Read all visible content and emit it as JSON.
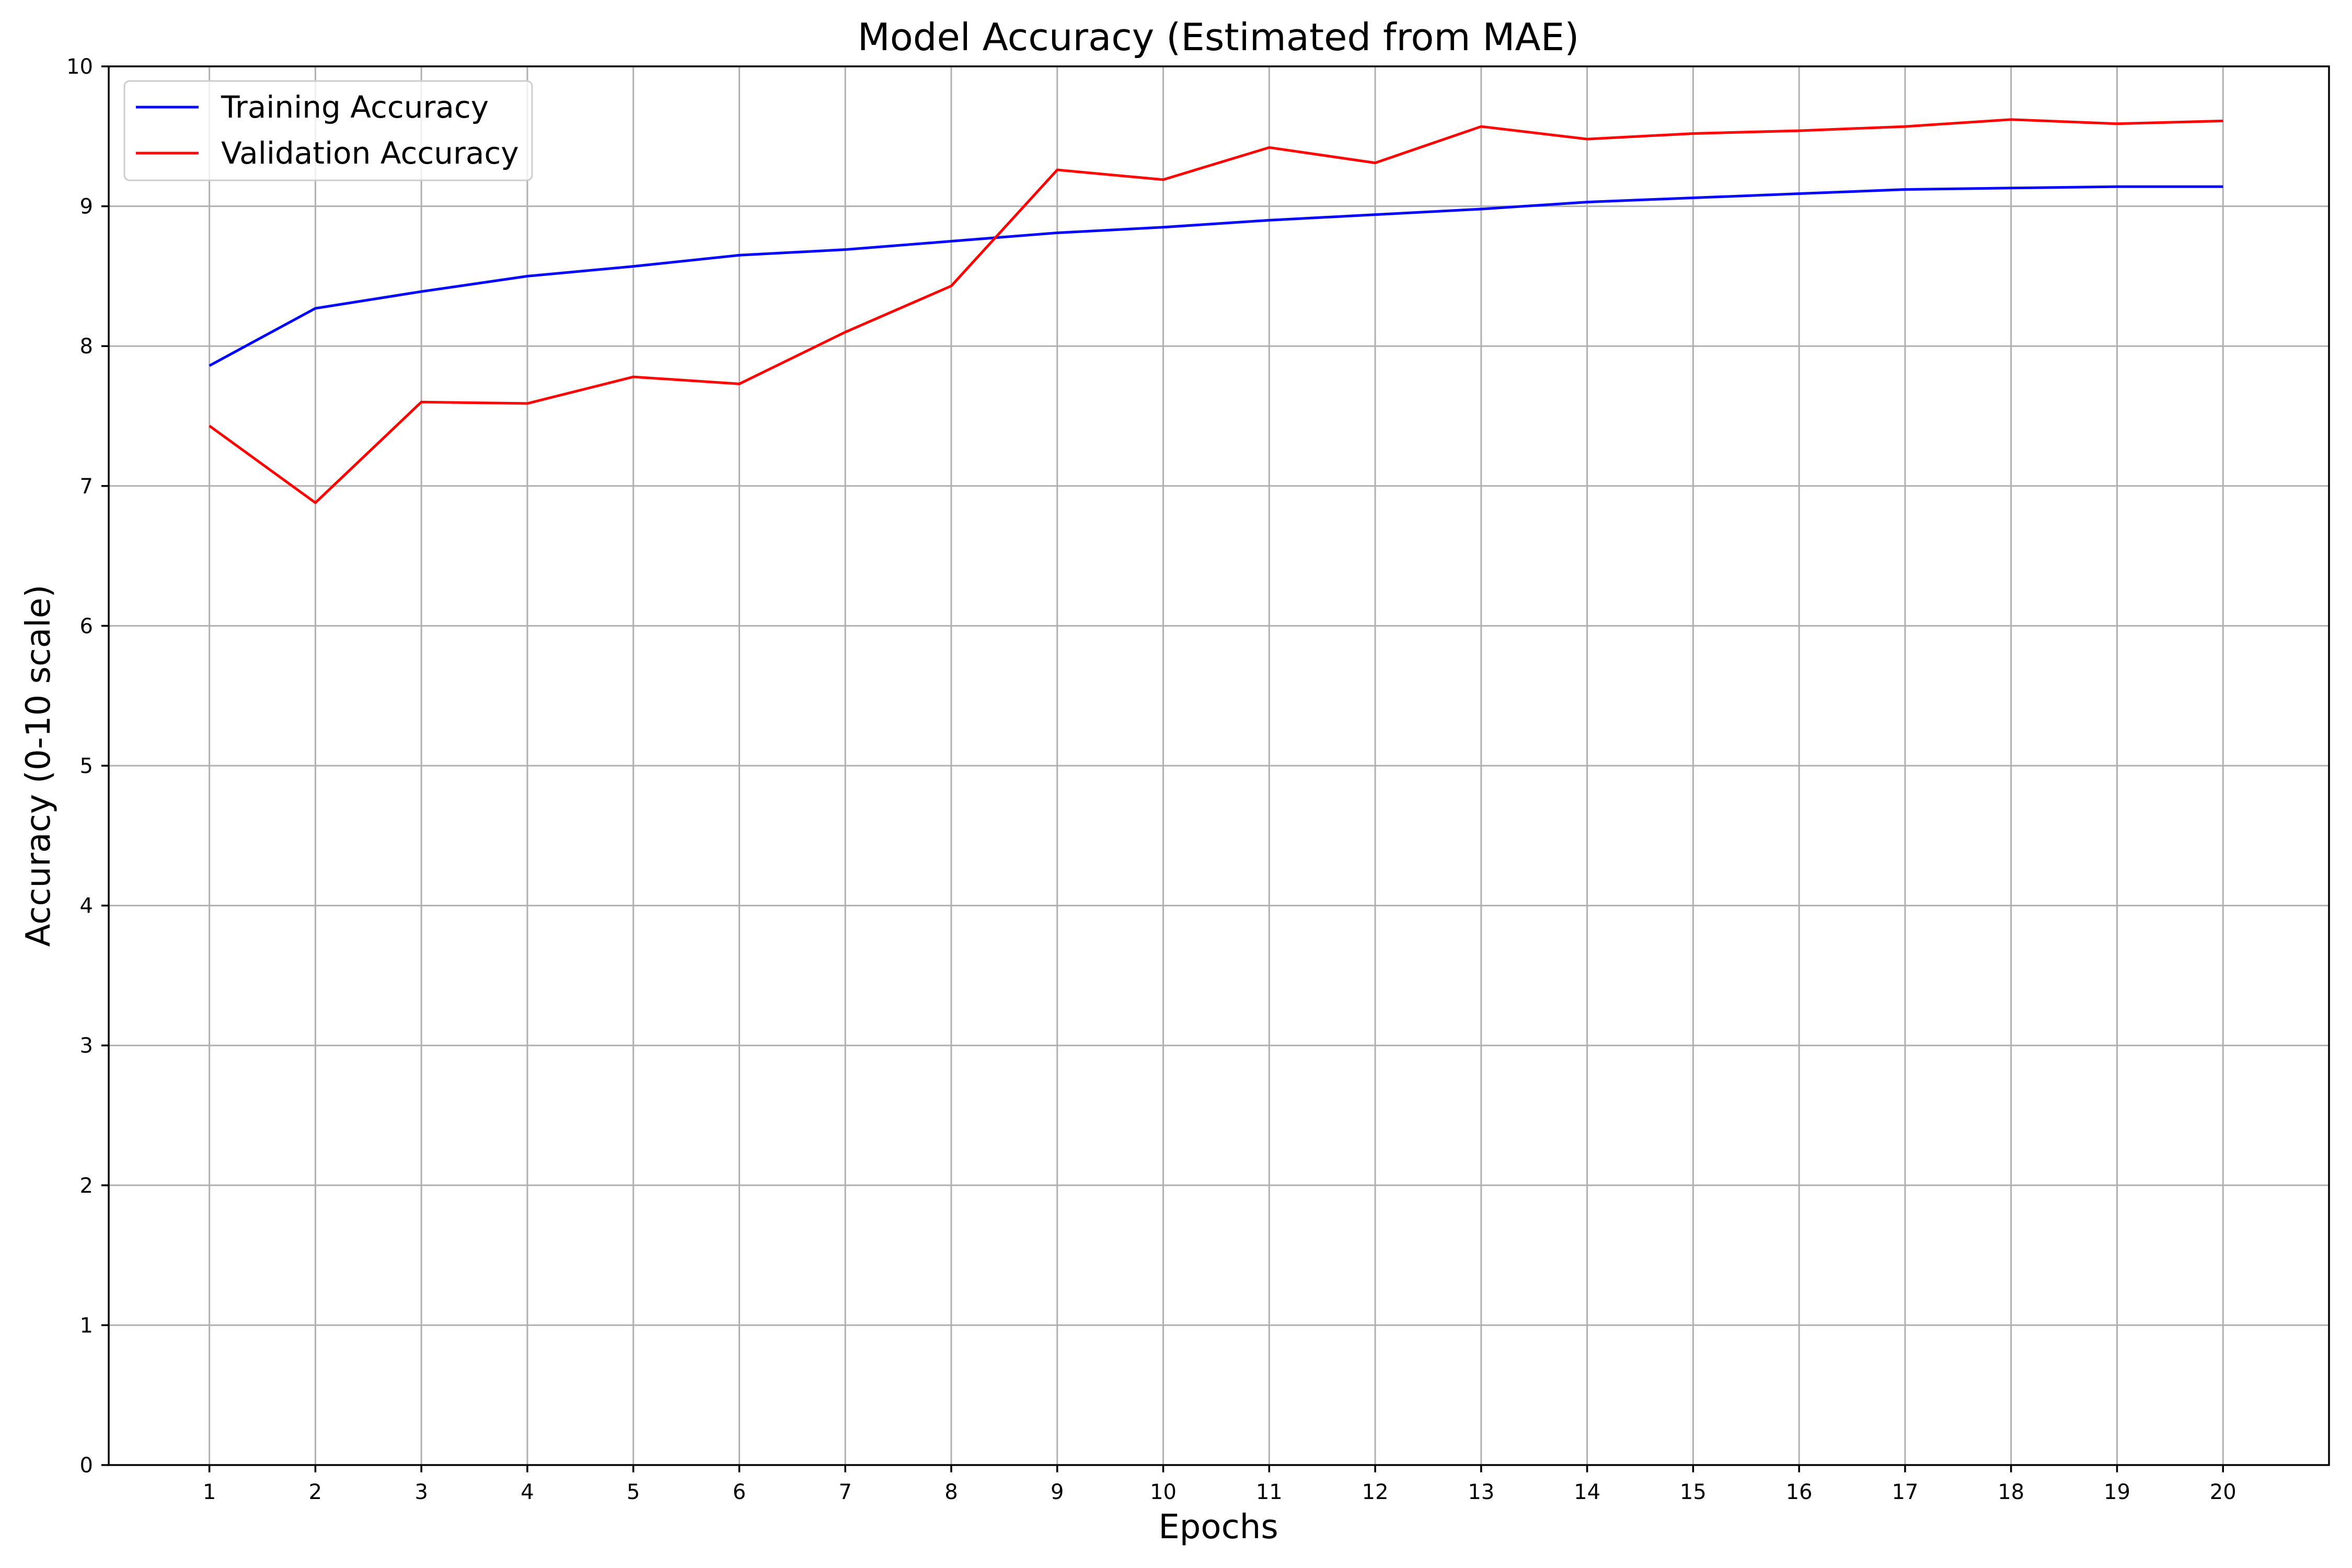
{
  "chart_data": {
    "type": "line",
    "title": "Model Accuracy (Estimated from MAE)",
    "xlabel": "Epochs",
    "ylabel": "Accuracy (0-10 scale)",
    "x": [
      1,
      2,
      3,
      4,
      5,
      6,
      7,
      8,
      9,
      10,
      11,
      12,
      13,
      14,
      15,
      16,
      17,
      18,
      19,
      20
    ],
    "xlim": [
      0.05,
      21.0
    ],
    "ylim": [
      0,
      10
    ],
    "yticks": [
      0,
      1,
      2,
      3,
      4,
      5,
      6,
      7,
      8,
      9,
      10
    ],
    "grid": true,
    "legend_position": "top-left",
    "series": [
      {
        "name": "Training Accuracy",
        "color": "#0000ff",
        "values": [
          7.86,
          8.27,
          8.39,
          8.5,
          8.57,
          8.65,
          8.69,
          8.75,
          8.81,
          8.85,
          8.9,
          8.94,
          8.98,
          9.03,
          9.06,
          9.09,
          9.12,
          9.13,
          9.14,
          9.14
        ]
      },
      {
        "name": "Validation Accuracy",
        "color": "#ff0000",
        "values": [
          7.43,
          6.88,
          7.6,
          7.59,
          7.78,
          7.73,
          8.1,
          8.43,
          9.26,
          9.19,
          9.42,
          9.31,
          9.57,
          9.48,
          9.52,
          9.54,
          9.57,
          9.62,
          9.59,
          9.61
        ]
      }
    ]
  }
}
